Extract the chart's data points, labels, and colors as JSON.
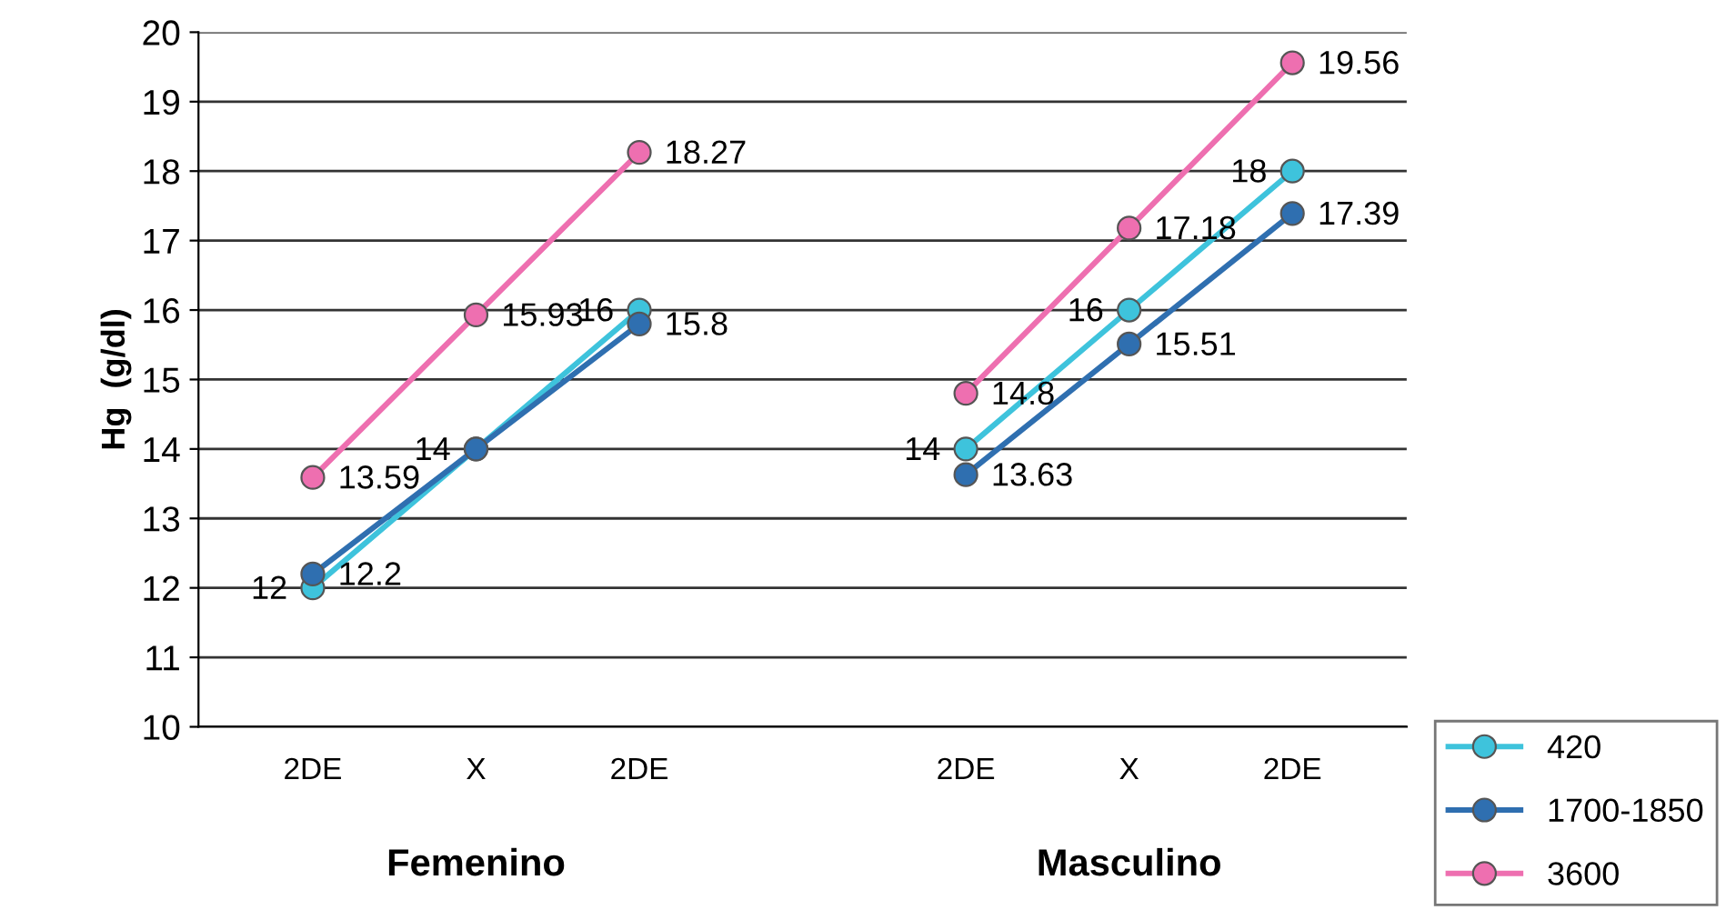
{
  "chart_data": {
    "type": "line",
    "ylabel": "Hg  (g/dl)",
    "categories": [
      "2DE",
      "X",
      "2DE",
      null,
      "2DE",
      "X",
      "2DE"
    ],
    "series": [
      {
        "name": "420",
        "color": "#3ec3dc",
        "values": [
          12,
          14,
          16,
          null,
          14,
          16,
          18
        ]
      },
      {
        "name": "1700-1850",
        "color": "#2f6fb0",
        "values": [
          12.2,
          14,
          15.8,
          null,
          13.63,
          15.51,
          17.39
        ],
        "value_labels": [
          "12.2",
          null,
          "15.8",
          null,
          "13.63",
          "15.51",
          "17.39"
        ]
      },
      {
        "name": "3600",
        "color": "#ee6fb0",
        "values": [
          13.59,
          15.93,
          18.27,
          null,
          14.8,
          17.18,
          19.56
        ]
      }
    ],
    "ylim": [
      10,
      20
    ],
    "yticks": [
      10,
      11,
      12,
      13,
      14,
      15,
      16,
      17,
      18,
      19,
      20
    ],
    "grid": "y",
    "marker": "circle",
    "line_style": "solid",
    "legend": "bottom right",
    "data_labels": true,
    "annotations": [
      "Femenino",
      "Masculino"
    ]
  }
}
